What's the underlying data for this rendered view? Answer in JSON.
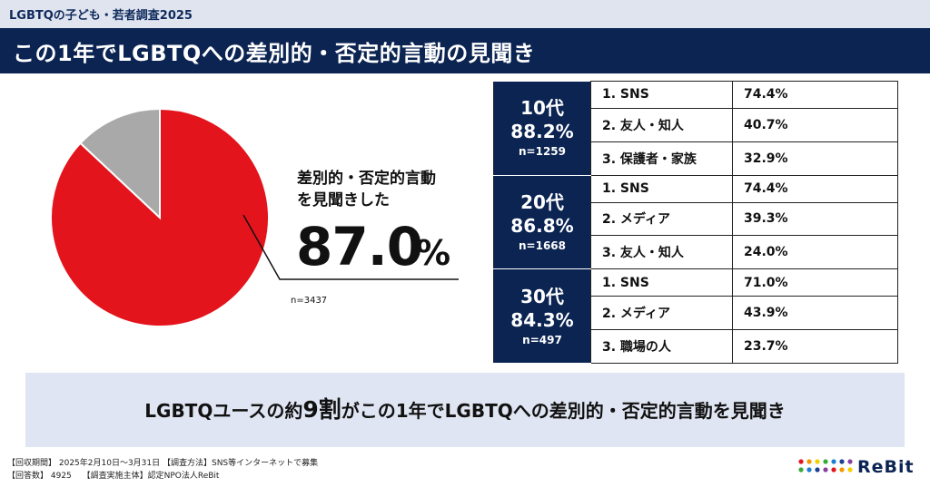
{
  "header": {
    "survey_label": "LGBTQの子ども・若者調査2025",
    "title": "この1年でLGBTQへの差別的・否定的言動の見聞き"
  },
  "chart_data": {
    "type": "pie",
    "slices": [
      {
        "label": "差別的・否定的言動を見聞きした",
        "value": 87.0,
        "color": "#e3141c"
      },
      {
        "label": "",
        "value": 13.0,
        "color": "#a9a9a9"
      }
    ],
    "callout_line1": "差別的・否定的言動",
    "callout_line2": "を見聞きした",
    "callout_value": "87.0",
    "callout_unit": "%",
    "n_label": "n=3437"
  },
  "table": {
    "groups": [
      {
        "age": "10代",
        "pct": "88.2%",
        "n": "n=1259",
        "items": [
          {
            "label": "1. SNS",
            "value": "74.4%"
          },
          {
            "label": "2. 友人・知人",
            "value": "40.7%"
          },
          {
            "label": "3. 保護者・家族",
            "value": "32.9%"
          }
        ]
      },
      {
        "age": "20代",
        "pct": "86.8%",
        "n": "n=1668",
        "items": [
          {
            "label": "1. SNS",
            "value": "74.4%"
          },
          {
            "label": "2. メディア",
            "value": "39.3%"
          },
          {
            "label": "3. 友人・知人",
            "value": "24.0%"
          }
        ]
      },
      {
        "age": "30代",
        "pct": "84.3%",
        "n": "n=497",
        "items": [
          {
            "label": "1. SNS",
            "value": "71.0%"
          },
          {
            "label": "2. メディア",
            "value": "43.9%"
          },
          {
            "label": "3. 職場の人",
            "value": "23.7%"
          }
        ]
      }
    ]
  },
  "summary": {
    "prefix": "LGBTQユースの約",
    "emphasis": "9割",
    "suffix": "がこの1年でLGBTQへの差別的・否定的言動を見聞き"
  },
  "footer": {
    "line1": "【回収期間】 2025年2月10日～3月31日 【調査方法】SNS等インターネットで募集",
    "line2": "【回答数】 4925　 【調査実施主体】認定NPO法人ReBit"
  },
  "logo": {
    "text": "ReBit",
    "dot_colors": [
      "#e3141c",
      "#f39800",
      "#f5d000",
      "#3aa93a",
      "#1d7fcf",
      "#1d3f94",
      "#8a3fa0"
    ]
  }
}
